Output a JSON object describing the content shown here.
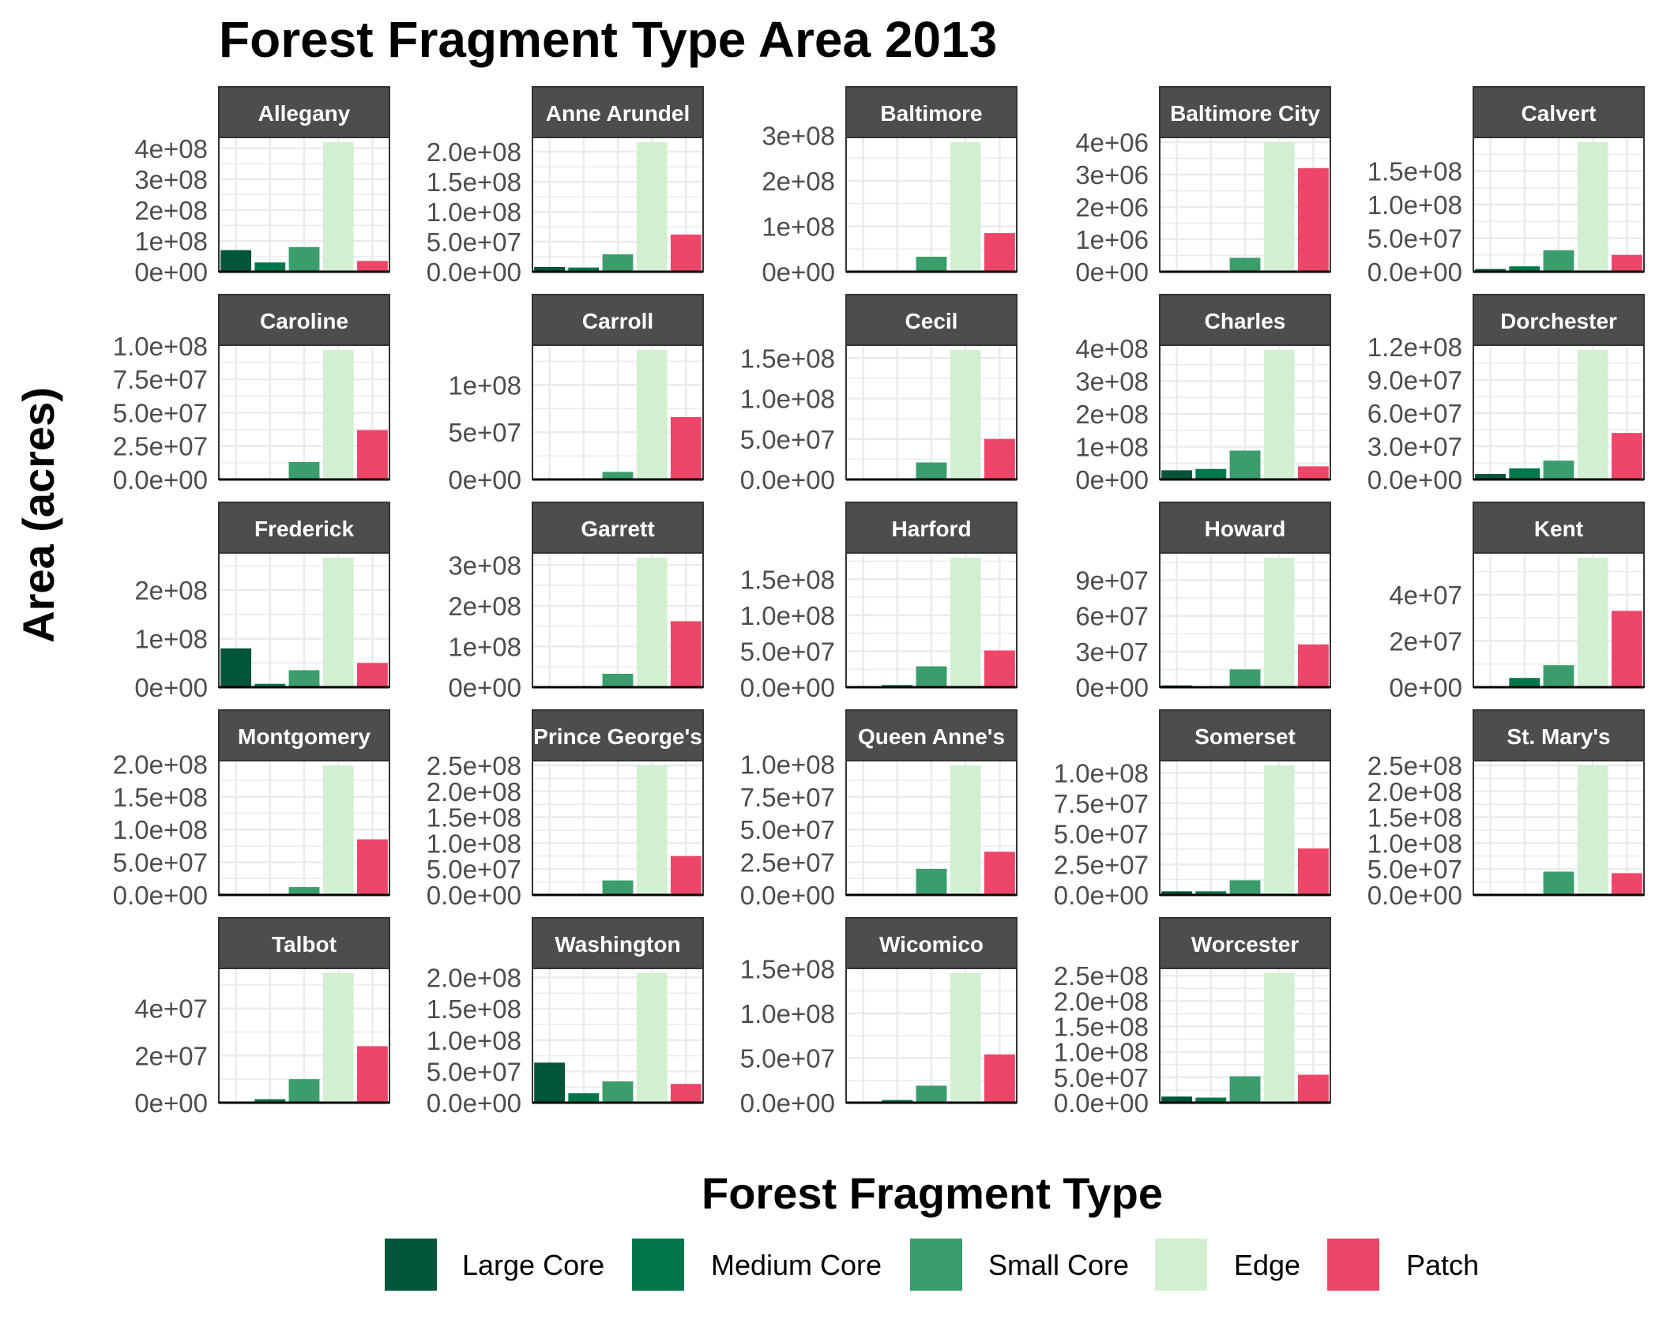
{
  "chart_data": {
    "type": "bar",
    "title": "Forest Fragment Type Area 2013",
    "xlabel": "",
    "ylabel": "Area (acres)",
    "legend_title": "Forest Fragment Type",
    "legend_position": "bottom",
    "grid": true,
    "facet_scales": "free_y",
    "categories": [
      "Large Core",
      "Medium Core",
      "Small Core",
      "Edge",
      "Patch"
    ],
    "colors": [
      "#02553b",
      "#017749",
      "#3b9d6c",
      "#d3efd1",
      "#ee4669"
    ],
    "panels": [
      {
        "name": "Allegany",
        "values": [
          70000000,
          30000000,
          80000000,
          420000000,
          35000000
        ],
        "ylim": [
          0,
          420000000
        ],
        "ticks": [
          0,
          100000000,
          200000000,
          300000000,
          400000000
        ],
        "tick_labels": [
          "0e+00",
          "1e+08",
          "2e+08",
          "3e+08",
          "4e+08"
        ]
      },
      {
        "name": "Anne Arundel",
        "values": [
          8000000,
          7000000,
          29000000,
          216000000,
          62000000
        ],
        "ylim": [
          0,
          216000000
        ],
        "ticks": [
          0,
          50000000,
          100000000,
          150000000,
          200000000
        ],
        "tick_labels": [
          "0.0e+00",
          "5.0e+07",
          "1.0e+08",
          "1.5e+08",
          "2.0e+08"
        ]
      },
      {
        "name": "Baltimore",
        "values": [
          1000000,
          1000000,
          33000000,
          285000000,
          85000000
        ],
        "ylim": [
          0,
          285000000
        ],
        "ticks": [
          0,
          100000000,
          200000000,
          300000000
        ],
        "tick_labels": [
          "0e+00",
          "1e+08",
          "2e+08",
          "3e+08"
        ]
      },
      {
        "name": "Baltimore City",
        "values": [
          5000,
          10000,
          430000,
          4000000,
          3200000
        ],
        "ylim": [
          0,
          4000000
        ],
        "ticks": [
          0,
          1000000,
          2000000,
          3000000,
          4000000
        ],
        "tick_labels": [
          "0e+00",
          "1e+06",
          "2e+06",
          "3e+06",
          "4e+06"
        ]
      },
      {
        "name": "Calvert",
        "values": [
          4000000,
          8000000,
          32000000,
          193000000,
          25000000
        ],
        "ylim": [
          0,
          193000000
        ],
        "ticks": [
          0,
          50000000,
          100000000,
          150000000
        ],
        "tick_labels": [
          "0.0e+00",
          "5.0e+07",
          "1.0e+08",
          "1.5e+08"
        ]
      },
      {
        "name": "Caroline",
        "values": [
          500000,
          500000,
          13000000,
          97000000,
          37000000
        ],
        "ylim": [
          0,
          97000000
        ],
        "ticks": [
          0,
          25000000,
          50000000,
          75000000,
          100000000
        ],
        "tick_labels": [
          "0.0e+00",
          "2.5e+07",
          "5.0e+07",
          "7.5e+07",
          "1.0e+08"
        ]
      },
      {
        "name": "Carroll",
        "values": [
          500000,
          500000,
          8000000,
          137000000,
          66000000
        ],
        "ylim": [
          0,
          137000000
        ],
        "ticks": [
          0,
          50000000,
          100000000
        ],
        "tick_labels": [
          "0e+00",
          "5e+07",
          "1e+08"
        ]
      },
      {
        "name": "Cecil",
        "values": [
          500000,
          500000,
          21000000,
          160000000,
          50000000
        ],
        "ylim": [
          0,
          160000000
        ],
        "ticks": [
          0,
          50000000,
          100000000,
          150000000
        ],
        "tick_labels": [
          "0.0e+00",
          "5.0e+07",
          "1.0e+08",
          "1.5e+08"
        ]
      },
      {
        "name": "Charles",
        "values": [
          28000000,
          32000000,
          88000000,
          395000000,
          40000000
        ],
        "ylim": [
          0,
          395000000
        ],
        "ticks": [
          0,
          100000000,
          200000000,
          300000000,
          400000000
        ],
        "tick_labels": [
          "0e+00",
          "1e+08",
          "2e+08",
          "3e+08",
          "4e+08"
        ]
      },
      {
        "name": "Dorchester",
        "values": [
          5000000,
          10000000,
          17000000,
          117000000,
          42000000
        ],
        "ylim": [
          0,
          117000000
        ],
        "ticks": [
          0,
          30000000,
          60000000,
          90000000,
          120000000
        ],
        "tick_labels": [
          "0.0e+00",
          "3.0e+07",
          "6.0e+07",
          "9.0e+07",
          "1.2e+08"
        ]
      },
      {
        "name": "Frederick",
        "values": [
          80000000,
          7000000,
          35000000,
          267000000,
          50000000
        ],
        "ylim": [
          0,
          267000000
        ],
        "ticks": [
          0,
          100000000,
          200000000
        ],
        "tick_labels": [
          "0e+00",
          "1e+08",
          "2e+08"
        ]
      },
      {
        "name": "Garrett",
        "values": [
          2000000,
          2000000,
          33000000,
          318000000,
          162000000
        ],
        "ylim": [
          0,
          318000000
        ],
        "ticks": [
          0,
          100000000,
          200000000,
          300000000
        ],
        "tick_labels": [
          "0e+00",
          "1e+08",
          "2e+08",
          "3e+08"
        ]
      },
      {
        "name": "Harford",
        "values": [
          500000,
          3000000,
          29000000,
          180000000,
          51000000
        ],
        "ylim": [
          0,
          180000000
        ],
        "ticks": [
          0,
          50000000,
          100000000,
          150000000
        ],
        "tick_labels": [
          "0.0e+00",
          "5.0e+07",
          "1.0e+08",
          "1.5e+08"
        ]
      },
      {
        "name": "Howard",
        "values": [
          1500000,
          500000,
          15000000,
          109000000,
          36000000
        ],
        "ylim": [
          0,
          109000000
        ],
        "ticks": [
          0,
          30000000,
          60000000,
          90000000
        ],
        "tick_labels": [
          "0e+00",
          "3e+07",
          "6e+07",
          "9e+07"
        ]
      },
      {
        "name": "Kent",
        "values": [
          200000,
          4000000,
          9500000,
          56000000,
          33000000
        ],
        "ylim": [
          0,
          56000000
        ],
        "ticks": [
          0,
          20000000,
          40000000
        ],
        "tick_labels": [
          "0e+00",
          "2e+07",
          "4e+07"
        ]
      },
      {
        "name": "Montgomery",
        "values": [
          500000,
          500000,
          12000000,
          198000000,
          85000000
        ],
        "ylim": [
          0,
          198000000
        ],
        "ticks": [
          0,
          50000000,
          100000000,
          150000000,
          200000000
        ],
        "tick_labels": [
          "0.0e+00",
          "5.0e+07",
          "1.0e+08",
          "1.5e+08",
          "2.0e+08"
        ]
      },
      {
        "name": "Prince George's",
        "values": [
          500000,
          1000000,
          28000000,
          250000000,
          75000000
        ],
        "ylim": [
          0,
          250000000
        ],
        "ticks": [
          0,
          50000000,
          100000000,
          150000000,
          200000000,
          250000000
        ],
        "tick_labels": [
          "0.0e+00",
          "5.0e+07",
          "1.0e+08",
          "1.5e+08",
          "2.0e+08",
          "2.5e+08"
        ]
      },
      {
        "name": "Queen Anne's",
        "values": [
          300000,
          500000,
          20000000,
          99000000,
          33000000
        ],
        "ylim": [
          0,
          99000000
        ],
        "ticks": [
          0,
          25000000,
          50000000,
          75000000,
          100000000
        ],
        "tick_labels": [
          "0.0e+00",
          "2.5e+07",
          "5.0e+07",
          "7.5e+07",
          "1.0e+08"
        ]
      },
      {
        "name": "Somerset",
        "values": [
          3000000,
          3000000,
          12000000,
          106000000,
          38000000
        ],
        "ylim": [
          0,
          106000000
        ],
        "ticks": [
          0,
          25000000,
          50000000,
          75000000,
          100000000
        ],
        "tick_labels": [
          "0.0e+00",
          "2.5e+07",
          "5.0e+07",
          "7.5e+07",
          "1.0e+08"
        ]
      },
      {
        "name": "St. Mary's",
        "values": [
          500000,
          1000000,
          45000000,
          250000000,
          42000000
        ],
        "ylim": [
          0,
          250000000
        ],
        "ticks": [
          0,
          50000000,
          100000000,
          150000000,
          200000000,
          250000000
        ],
        "tick_labels": [
          "0.0e+00",
          "5.0e+07",
          "1.0e+08",
          "1.5e+08",
          "2.0e+08",
          "2.5e+08"
        ]
      },
      {
        "name": "Talbot",
        "values": [
          200000,
          1500000,
          10000000,
          55000000,
          24000000
        ],
        "ylim": [
          0,
          55000000
        ],
        "ticks": [
          0,
          20000000,
          40000000
        ],
        "tick_labels": [
          "0e+00",
          "2e+07",
          "4e+07"
        ]
      },
      {
        "name": "Washington",
        "values": [
          64000000,
          15000000,
          34000000,
          207000000,
          30000000
        ],
        "ylim": [
          0,
          207000000
        ],
        "ticks": [
          0,
          50000000,
          100000000,
          150000000,
          200000000
        ],
        "tick_labels": [
          "0.0e+00",
          "5.0e+07",
          "1.0e+08",
          "1.5e+08",
          "2.0e+08"
        ]
      },
      {
        "name": "Wicomico",
        "values": [
          300000,
          3000000,
          19000000,
          145000000,
          54000000
        ],
        "ylim": [
          0,
          145000000
        ],
        "ticks": [
          0,
          50000000,
          100000000,
          150000000
        ],
        "tick_labels": [
          "0.0e+00",
          "5.0e+07",
          "1.0e+08",
          "1.5e+08"
        ]
      },
      {
        "name": "Worcester",
        "values": [
          12000000,
          10000000,
          52000000,
          255000000,
          55000000
        ],
        "ylim": [
          0,
          255000000
        ],
        "ticks": [
          0,
          50000000,
          100000000,
          150000000,
          200000000,
          250000000
        ],
        "tick_labels": [
          "0.0e+00",
          "5.0e+07",
          "1.0e+08",
          "1.5e+08",
          "2.0e+08",
          "2.5e+08"
        ]
      }
    ]
  }
}
